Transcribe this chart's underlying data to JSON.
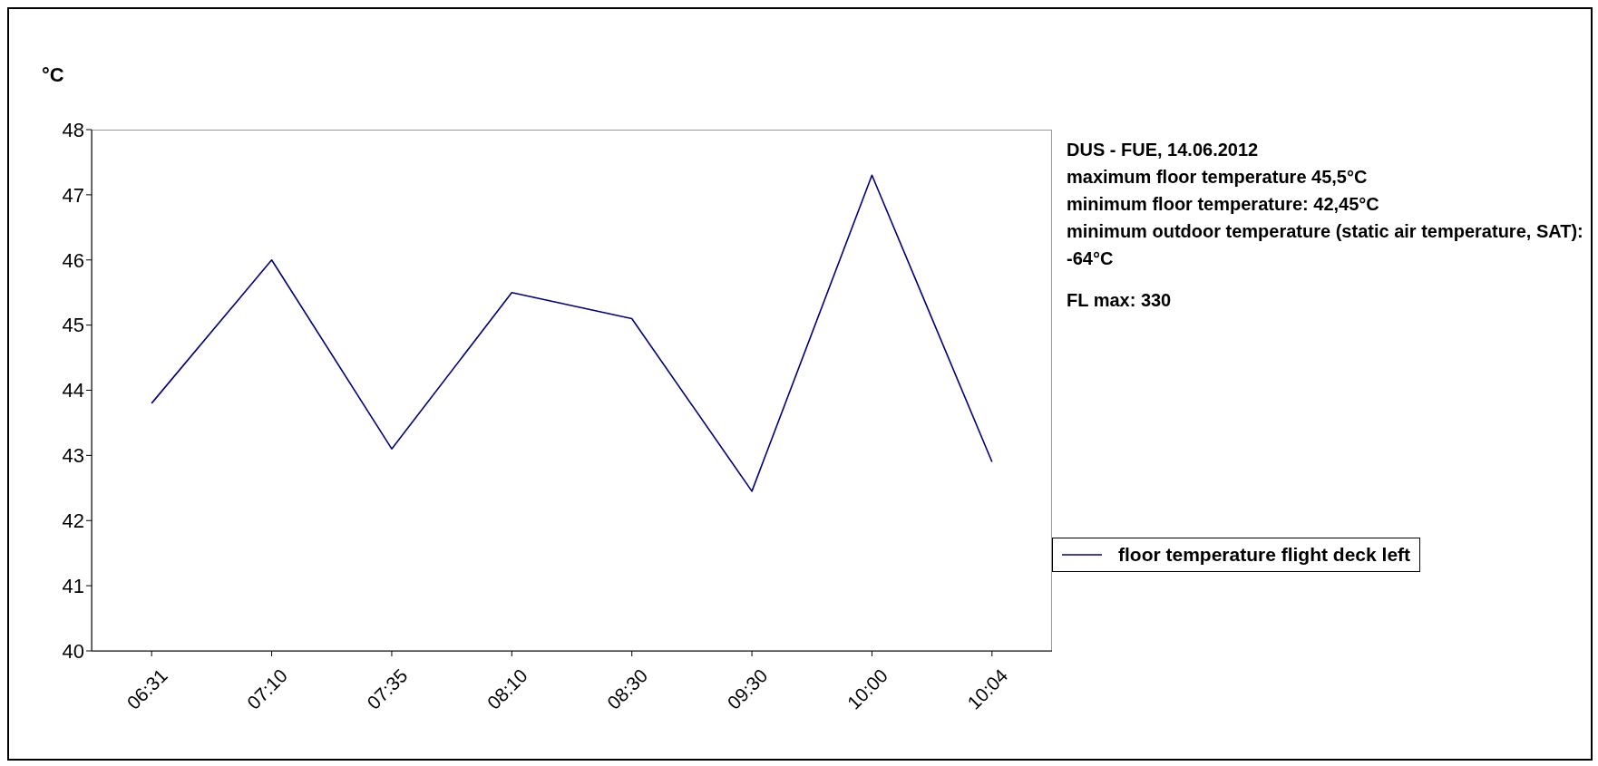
{
  "chart_data": {
    "type": "line",
    "ylabel": "°C",
    "categories": [
      "06:31",
      "07:10",
      "07:35",
      "08:10",
      "08:30",
      "09:30",
      "10:00",
      "10:04"
    ],
    "series": [
      {
        "name": "floor temperature flight deck left",
        "color": "#000080",
        "values": [
          43.8,
          46.0,
          43.1,
          45.5,
          45.1,
          42.45,
          47.3,
          42.9
        ]
      }
    ],
    "ylim": [
      40,
      48
    ],
    "yticks": [
      40,
      41,
      42,
      43,
      44,
      45,
      46,
      47,
      48
    ],
    "grid": false,
    "legend": "right",
    "marker": "none",
    "annotations": [
      "DUS - FUE, 14.06.2012",
      "maximum floor temperature 45,5°C",
      "minimum floor temperature: 42,45°C",
      "minimum outdoor temperature (static air temperature, SAT): -64°C",
      "FL max: 330"
    ]
  }
}
